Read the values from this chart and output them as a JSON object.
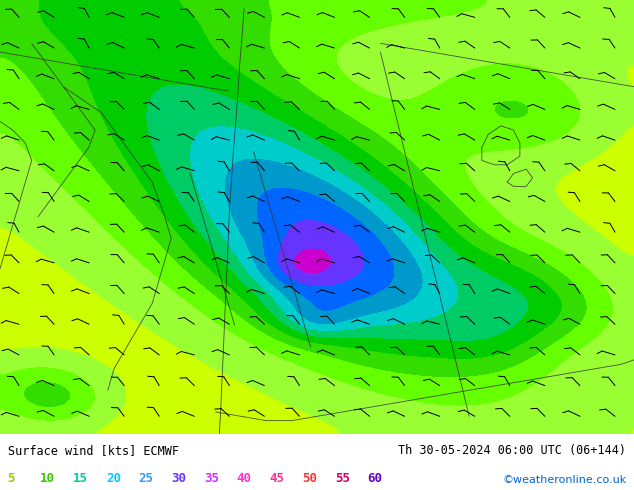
{
  "title_left": "Surface wind [kts] ECMWF",
  "title_right": "Th 30-05-2024 06:00 UTC (06+144)",
  "credit": "©weatheronline.co.uk",
  "legend_values": [
    "5",
    "10",
    "15",
    "20",
    "25",
    "30",
    "35",
    "40",
    "45",
    "50",
    "55",
    "60"
  ],
  "legend_colors": [
    "#99cc00",
    "#66ff00",
    "#00ff66",
    "#00ffcc",
    "#00ccff",
    "#3399ff",
    "#9933ff",
    "#ff33cc",
    "#ff3399",
    "#ff0000",
    "#cc0000",
    "#990000"
  ],
  "colormap_levels": [
    0,
    5,
    10,
    15,
    20,
    25,
    30,
    35,
    40,
    45,
    50,
    55,
    60
  ],
  "colormap_colors": [
    "#ffff00",
    "#ccff00",
    "#99ff33",
    "#66ff00",
    "#33dd00",
    "#00cc00",
    "#00cc66",
    "#00cccc",
    "#0099cc",
    "#0066ff",
    "#6633ff",
    "#cc00cc"
  ],
  "bg_color": "#ffffff",
  "map_bg": "#ffff00",
  "figsize": [
    6.34,
    4.9
  ],
  "dpi": 100
}
